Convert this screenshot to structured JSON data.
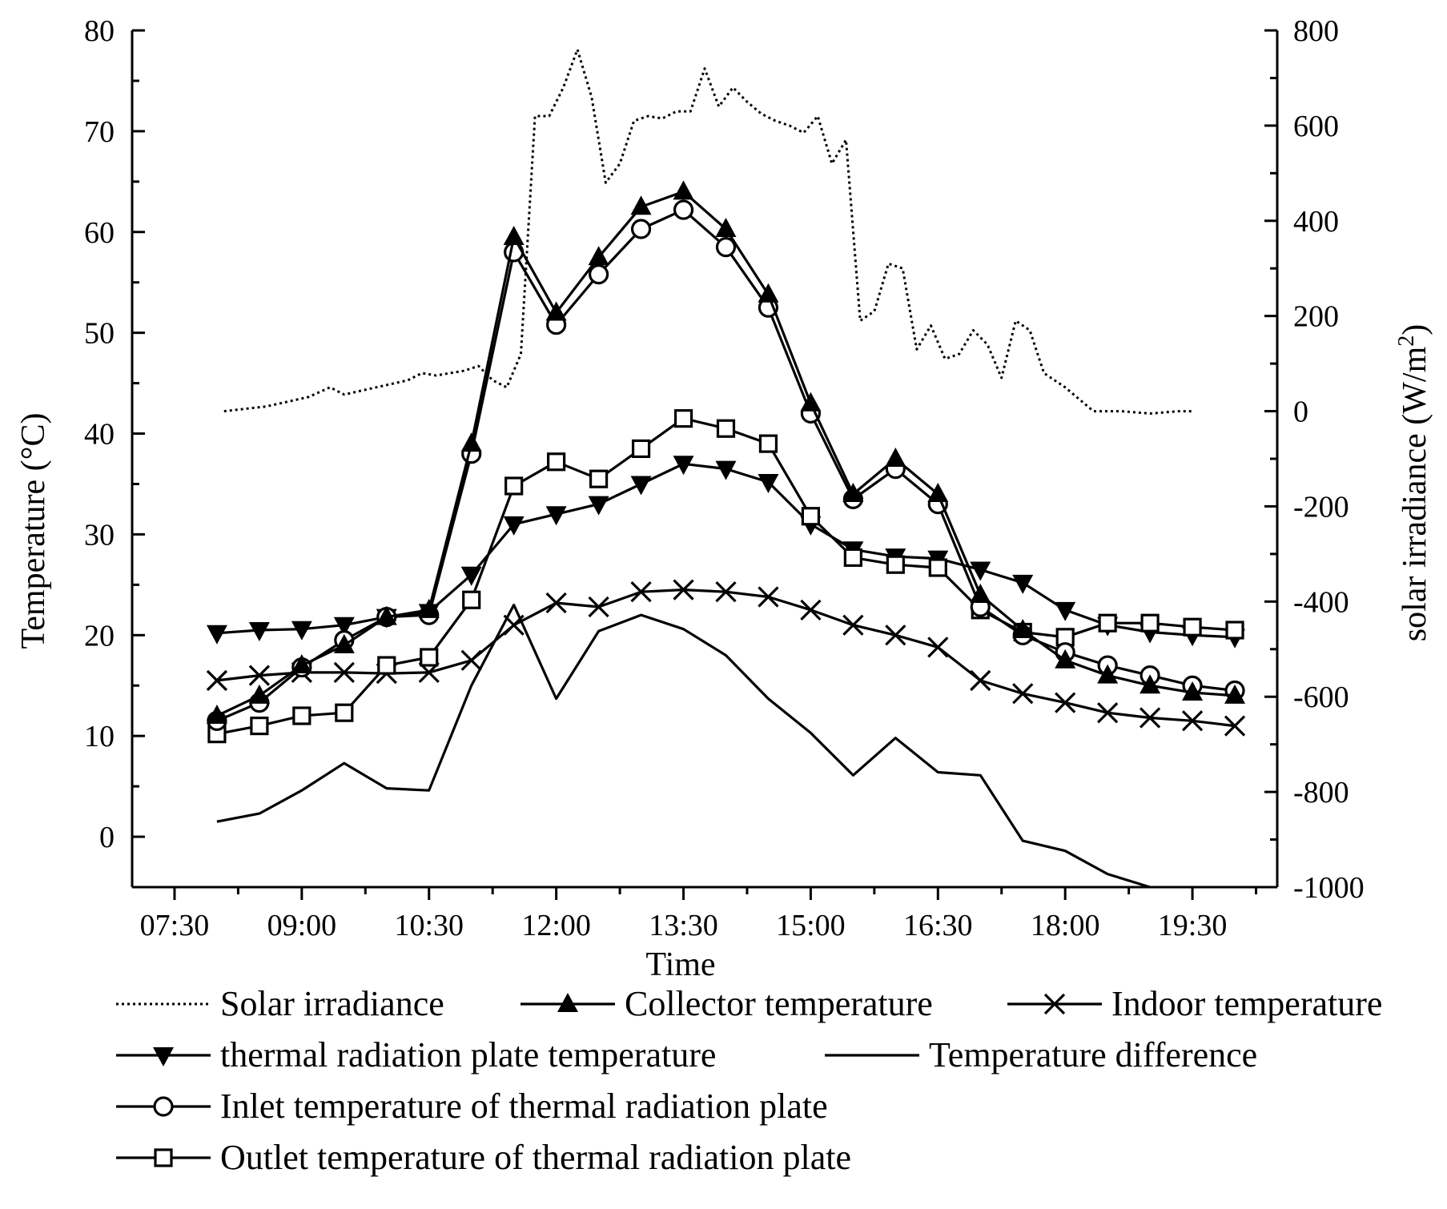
{
  "chart_data": {
    "type": "line",
    "xlabel": "Time",
    "ylabel": "Temperature (°C)",
    "y2label_main": "solar irradiance (W/m",
    "y2label_sup": "2",
    "y2label_close": ")",
    "xlim": [
      "07:00",
      "20:30"
    ],
    "ylim": [
      -5,
      80
    ],
    "y2lim": [
      -1000,
      800
    ],
    "x_ticks": [
      "07:30",
      "09:00",
      "10:30",
      "12:00",
      "13:30",
      "15:00",
      "16:30",
      "18:00",
      "19:30"
    ],
    "y_ticks": [
      0,
      10,
      20,
      30,
      40,
      50,
      60,
      70,
      80
    ],
    "y2_ticks": [
      -1000,
      -800,
      -600,
      -400,
      -200,
      0,
      200,
      400,
      600,
      800
    ],
    "x": [
      "08:00",
      "08:30",
      "09:00",
      "09:30",
      "10:00",
      "10:30",
      "11:00",
      "11:30",
      "12:00",
      "12:30",
      "13:00",
      "13:30",
      "14:00",
      "14:30",
      "15:00",
      "15:30",
      "16:00",
      "16:30",
      "17:00",
      "17:30",
      "18:00",
      "18:30",
      "19:00",
      "19:30",
      "20:00"
    ],
    "series": [
      {
        "name": "Collector temperature",
        "axis": "left",
        "marker": "triangle-up",
        "values": [
          12.0,
          14.0,
          17.0,
          19.0,
          21.8,
          22.5,
          39.0,
          59.5,
          52.0,
          57.5,
          62.5,
          64.0,
          60.3,
          53.8,
          43.0,
          34.0,
          37.5,
          34.0,
          24.0,
          20.5,
          17.5,
          16.0,
          15.0,
          14.3,
          14.0
        ]
      },
      {
        "name": "Inlet temperature of thermal radiation plate",
        "axis": "left",
        "marker": "circle",
        "values": [
          11.5,
          13.3,
          16.8,
          19.5,
          21.8,
          22.0,
          38.0,
          58.0,
          50.8,
          55.8,
          60.3,
          62.2,
          58.5,
          52.5,
          42.0,
          33.5,
          36.5,
          33.0,
          22.8,
          20.0,
          18.3,
          17.0,
          16.0,
          15.0,
          14.5
        ]
      },
      {
        "name": "Outlet temperature of thermal radiation plate",
        "axis": "left",
        "marker": "square",
        "values": [
          10.2,
          11.0,
          12.0,
          12.3,
          17.0,
          17.8,
          23.5,
          34.8,
          37.2,
          35.5,
          38.5,
          41.5,
          40.5,
          39.0,
          31.8,
          27.7,
          27.0,
          26.7,
          22.5,
          20.3,
          19.8,
          21.2,
          21.2,
          20.8,
          20.5
        ]
      },
      {
        "name": "thermal radiation plate temperature",
        "axis": "left",
        "marker": "triangle-down",
        "values": [
          20.2,
          20.5,
          20.6,
          21.0,
          21.8,
          22.3,
          26.0,
          31.0,
          32.0,
          33.0,
          35.0,
          37.0,
          36.5,
          35.2,
          31.0,
          28.5,
          27.8,
          27.6,
          26.5,
          25.2,
          22.5,
          21.0,
          20.3,
          20.0,
          19.8
        ]
      },
      {
        "name": "Indoor temperature",
        "axis": "left",
        "marker": "x",
        "values": [
          15.5,
          16.0,
          16.3,
          16.3,
          16.2,
          16.3,
          17.5,
          21.0,
          23.2,
          22.8,
          24.3,
          24.5,
          24.3,
          23.8,
          22.5,
          21.0,
          20.0,
          18.8,
          15.5,
          14.2,
          13.3,
          12.3,
          11.8,
          11.5,
          11.0
        ]
      },
      {
        "name": "Temperature difference",
        "axis": "left",
        "marker": "none",
        "x": [
          "08:00",
          "08:30",
          "09:00",
          "09:30",
          "10:00",
          "10:30",
          "11:00",
          "11:30",
          "12:00",
          "12:30",
          "13:00",
          "13:30",
          "14:00",
          "14:30",
          "15:00",
          "15:30",
          "16:00",
          "16:30",
          "17:00",
          "17:30",
          "18:00",
          "18:30",
          "19:00"
        ],
        "values": [
          1.5,
          2.3,
          4.6,
          7.3,
          4.8,
          4.6,
          15.0,
          23.0,
          13.7,
          20.4,
          22.0,
          20.6,
          18.0,
          13.7,
          10.3,
          6.1,
          9.8,
          6.4,
          6.1,
          -0.4,
          -1.4,
          -3.7,
          -5.0
        ]
      },
      {
        "name": "Solar  irradiance",
        "axis": "right",
        "marker": "none",
        "style": "dotted",
        "x": [
          "08:05",
          "08:20",
          "08:35",
          "08:50",
          "09:05",
          "09:20",
          "09:30",
          "09:45",
          "10:00",
          "10:15",
          "10:25",
          "10:35",
          "10:45",
          "10:55",
          "11:05",
          "11:15",
          "11:25",
          "11:35",
          "11:45",
          "11:55",
          "12:05",
          "12:15",
          "12:25",
          "12:35",
          "12:45",
          "12:55",
          "13:05",
          "13:15",
          "13:25",
          "13:35",
          "13:45",
          "13:55",
          "14:05",
          "14:15",
          "14:25",
          "14:35",
          "14:45",
          "14:55",
          "15:05",
          "15:15",
          "15:25",
          "15:35",
          "15:45",
          "15:55",
          "16:05",
          "16:15",
          "16:25",
          "16:35",
          "16:45",
          "16:55",
          "17:05",
          "17:15",
          "17:25",
          "17:35",
          "17:45",
          "18:00",
          "18:20",
          "18:40",
          "19:00",
          "19:20",
          "19:30"
        ],
        "values": [
          0,
          5,
          10,
          20,
          30,
          50,
          35,
          45,
          55,
          65,
          80,
          75,
          80,
          85,
          95,
          65,
          50,
          120,
          620,
          620,
          680,
          760,
          660,
          480,
          520,
          610,
          620,
          615,
          630,
          630,
          720,
          640,
          680,
          650,
          625,
          610,
          600,
          585,
          620,
          520,
          570,
          190,
          210,
          310,
          300,
          130,
          180,
          110,
          120,
          170,
          140,
          70,
          190,
          170,
          80,
          50,
          0,
          0,
          -5,
          0,
          0
        ]
      }
    ],
    "legend": {
      "placement": "bottom",
      "entries": [
        "Solar  irradiance",
        "Collector temperature",
        "Indoor temperature",
        "thermal radiation plate temperature",
        "Temperature difference",
        "Inlet temperature of thermal radiation plate",
        "Outlet temperature of thermal radiation plate"
      ]
    },
    "grid": false
  }
}
